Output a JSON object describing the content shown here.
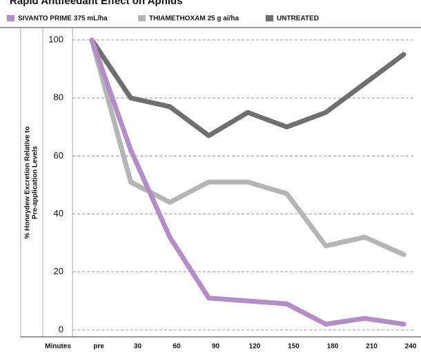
{
  "chart_data": {
    "type": "line",
    "title": "Rapid Antifeedant Effect on Aphids",
    "xlabel": "Minutes",
    "ylabel": [
      "% Honeydew Excretion Relative to",
      "Pre-application Levels"
    ],
    "categories": [
      "pre",
      "30",
      "60",
      "90",
      "120",
      "150",
      "180",
      "210",
      "240"
    ],
    "series": [
      {
        "name": "SIVANTO PRIME 375 mL/ha",
        "color": "#b48cc8",
        "values": [
          100,
          62,
          32,
          11,
          10,
          9,
          2,
          4,
          2
        ]
      },
      {
        "name": "THIAMETHOXAM 25 g ai/ha",
        "color": "#b5b5b5",
        "values": [
          100,
          51,
          44,
          51,
          51,
          47,
          29,
          32,
          26
        ]
      },
      {
        "name": "UNTREATED",
        "color": "#6f6f6f",
        "values": [
          100,
          80,
          77,
          67,
          75,
          70,
          75,
          85,
          95
        ]
      }
    ],
    "ylim": [
      0,
      100
    ],
    "yticks": [
      0,
      20,
      40,
      60,
      80,
      100
    ],
    "grid": true,
    "legend": "top"
  }
}
